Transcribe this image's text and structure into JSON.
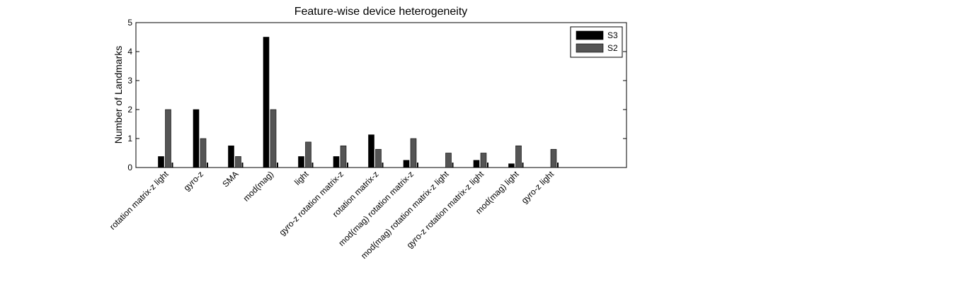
{
  "chart_data": {
    "type": "bar",
    "title": "Feature-wise device heterogeneity",
    "xlabel": "",
    "ylabel": "Number of Landmarks",
    "ylim": [
      0,
      5
    ],
    "yticks": [
      "0",
      "1",
      "2",
      "3",
      "4",
      "5"
    ],
    "grid": false,
    "legend_position": "top-right",
    "categories": [
      "rotation matrix-z  light",
      "gyro-z",
      "SMA",
      "mod(mag)",
      "light",
      "gyro-z  rotation matrix-z",
      "rotation matrix-z",
      "mod(mag)  rotation matrix-z",
      "mod(mag)  rotation matrix-z  light",
      "gyro-z  rotation matrix-z  light",
      "mod(mag)  light",
      "gyro-z  light"
    ],
    "series": [
      {
        "name": "S3",
        "color": "#000000",
        "values": [
          0.38,
          2.0,
          0.75,
          4.5,
          0.38,
          0.38,
          1.13,
          0.25,
          0,
          0.25,
          0.13,
          0
        ]
      },
      {
        "name": "S2",
        "color": "#555555",
        "values": [
          2.0,
          1.0,
          0.38,
          2.0,
          0.88,
          0.75,
          0.63,
          1.0,
          0.5,
          0.5,
          0.75,
          0.63
        ]
      }
    ]
  }
}
